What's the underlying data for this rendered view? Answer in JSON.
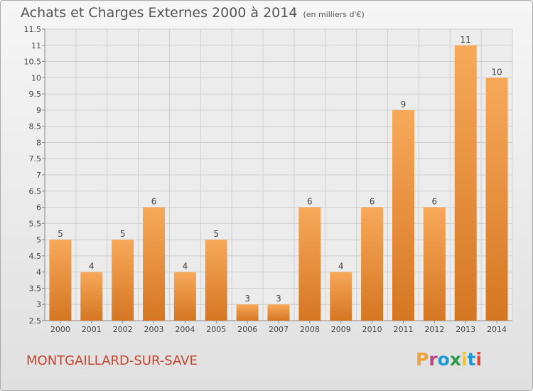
{
  "header": {
    "title": "Achats et Charges Externes 2000 à 2014",
    "subtitle": "(en milliers d'€)"
  },
  "footer": {
    "town": "MONTGAILLARD-SUR-SAVE",
    "logo": "Proxiti",
    "logo_colors": [
      "#f2a13a",
      "#c3417c",
      "#1a9ad6",
      "#2e9a4a",
      "#f2c61f",
      "#1a9ad6",
      "#e04a2a"
    ]
  },
  "colors": {
    "bar_top": "#f7a95a",
    "bar_bottom": "#d57622",
    "text": "#555555",
    "town": "#c8442e"
  },
  "chart_data": {
    "type": "bar",
    "title": "Achats et Charges Externes 2000 à 2014",
    "subtitle": "(en milliers d'€)",
    "categories": [
      "2000",
      "2001",
      "2002",
      "2003",
      "2004",
      "2005",
      "2006",
      "2007",
      "2008",
      "2009",
      "2010",
      "2011",
      "2012",
      "2013",
      "2014"
    ],
    "values": [
      5,
      4,
      5,
      6,
      4,
      5,
      3,
      3,
      6,
      4,
      6,
      9,
      6,
      11,
      10
    ],
    "value_labels": [
      "5",
      "4",
      "5",
      "6",
      "4",
      "5",
      "3",
      "3",
      "6",
      "4",
      "6",
      "9",
      "6",
      "11",
      "10"
    ],
    "ylim": [
      2.5,
      11.5
    ],
    "yticks": [
      2.5,
      3,
      3.5,
      4,
      4.5,
      5,
      5.5,
      6,
      6.5,
      7,
      7.5,
      8,
      8.5,
      9,
      9.5,
      10,
      10.5,
      11,
      11.5
    ],
    "ytick_labels": [
      "2.5",
      "3",
      "3.5",
      "4",
      "4.5",
      "5",
      "5.5",
      "6",
      "6.5",
      "7",
      "7.5",
      "8",
      "8.5",
      "9",
      "9.5",
      "10",
      "10.5",
      "11",
      "11.5"
    ],
    "grid": true,
    "legend": "none"
  }
}
